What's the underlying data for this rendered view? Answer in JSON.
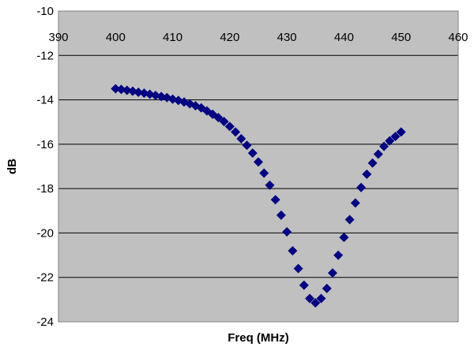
{
  "chart_data": {
    "type": "scatter",
    "title": "",
    "xlabel": "Freq (MHz)",
    "ylabel": "dB",
    "xlim": [
      390,
      460
    ],
    "ylim": [
      -24,
      -10
    ],
    "x_ticks": [
      390,
      400,
      410,
      420,
      430,
      440,
      450,
      460
    ],
    "y_ticks": [
      -10,
      -12,
      -14,
      -16,
      -18,
      -20,
      -22,
      -24
    ],
    "x_axis_position": "top",
    "grid": "horizontal",
    "legend": "none",
    "plot_background": "#c0c0c0",
    "marker": "diamond",
    "series": [
      {
        "color": "#000080",
        "points": [
          [
            400,
            -13.5
          ],
          [
            401,
            -13.53
          ],
          [
            402,
            -13.57
          ],
          [
            403,
            -13.61
          ],
          [
            404,
            -13.66
          ],
          [
            405,
            -13.7
          ],
          [
            406,
            -13.75
          ],
          [
            407,
            -13.8
          ],
          [
            408,
            -13.85
          ],
          [
            409,
            -13.9
          ],
          [
            410,
            -13.97
          ],
          [
            411,
            -14.03
          ],
          [
            412,
            -14.1
          ],
          [
            413,
            -14.18
          ],
          [
            414,
            -14.27
          ],
          [
            415,
            -14.36
          ],
          [
            416,
            -14.5
          ],
          [
            417,
            -14.65
          ],
          [
            418,
            -14.8
          ],
          [
            419,
            -14.98
          ],
          [
            420,
            -15.2
          ],
          [
            421,
            -15.45
          ],
          [
            422,
            -15.75
          ],
          [
            423,
            -16.05
          ],
          [
            424,
            -16.4
          ],
          [
            425,
            -16.8
          ],
          [
            426,
            -17.3
          ],
          [
            427,
            -17.85
          ],
          [
            428,
            -18.5
          ],
          [
            429,
            -19.2
          ],
          [
            430,
            -19.95
          ],
          [
            431,
            -20.8
          ],
          [
            432,
            -21.6
          ],
          [
            433,
            -22.35
          ],
          [
            434,
            -22.95
          ],
          [
            435,
            -23.15
          ],
          [
            436,
            -22.95
          ],
          [
            437,
            -22.5
          ],
          [
            438,
            -21.8
          ],
          [
            439,
            -21.0
          ],
          [
            440,
            -20.2
          ],
          [
            441,
            -19.4
          ],
          [
            442,
            -18.65
          ],
          [
            443,
            -17.95
          ],
          [
            444,
            -17.35
          ],
          [
            445,
            -16.85
          ],
          [
            446,
            -16.45
          ],
          [
            447,
            -16.1
          ],
          [
            448,
            -15.85
          ],
          [
            449,
            -15.65
          ],
          [
            450,
            -15.45
          ]
        ]
      }
    ]
  }
}
